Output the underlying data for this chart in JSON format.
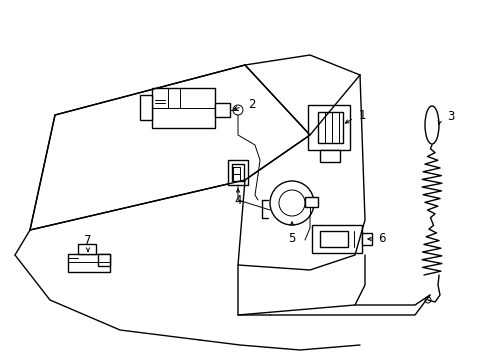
{
  "background_color": "#ffffff",
  "line_color": "#000000",
  "lw": 1.0,
  "tlw": 0.7,
  "fig_width": 4.89,
  "fig_height": 3.6,
  "dpi": 100
}
